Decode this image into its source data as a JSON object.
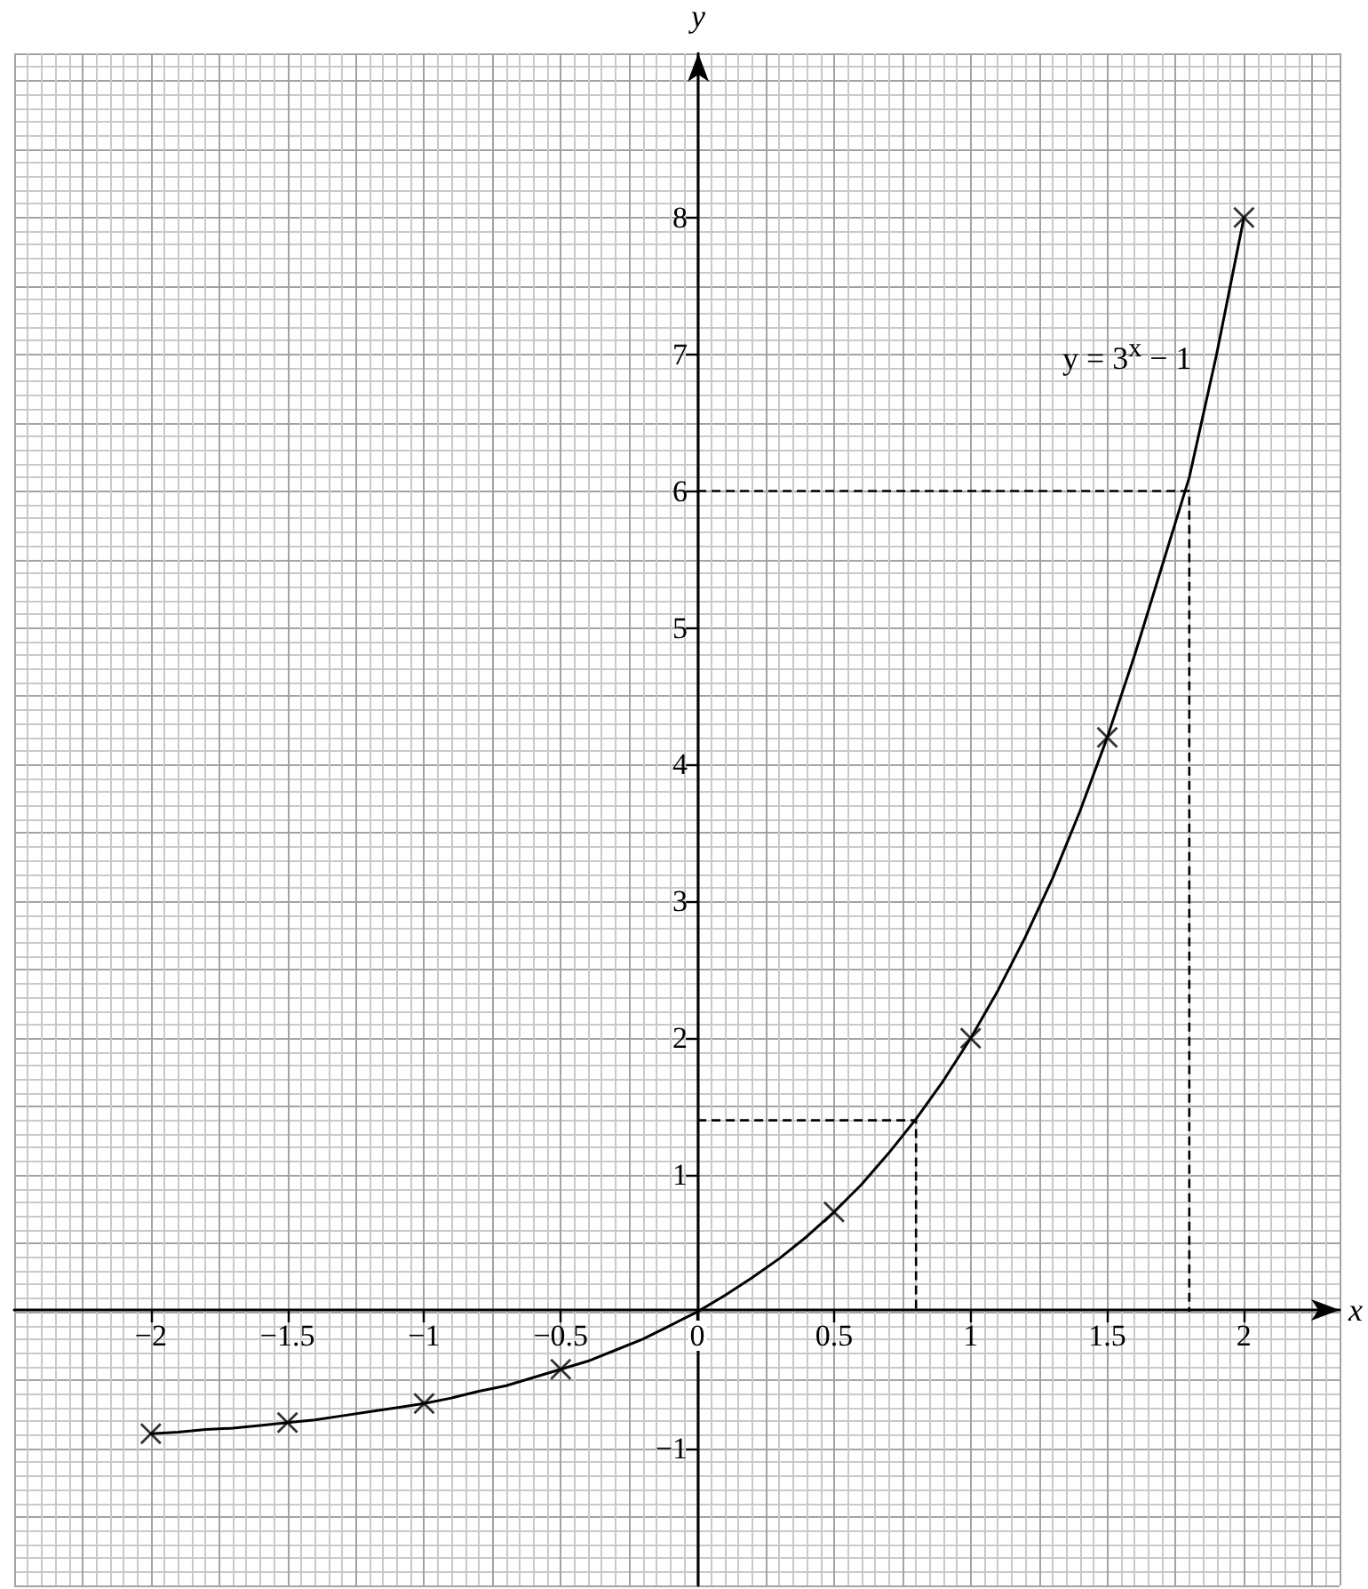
{
  "chart_data": {
    "type": "line",
    "xlabel": "x",
    "ylabel": "y",
    "xlim": [
      -2.5,
      2.35
    ],
    "ylim": [
      -2,
      9.2
    ],
    "xticks": [
      {
        "value": -2,
        "label": "−2"
      },
      {
        "value": -1.5,
        "label": "−1.5"
      },
      {
        "value": -1,
        "label": "−1"
      },
      {
        "value": -0.5,
        "label": "−0.5"
      },
      0,
      0.5,
      1,
      1.5,
      2
    ],
    "yticks": [
      {
        "value": -1,
        "label": "−1"
      },
      1,
      2,
      3,
      4,
      5,
      6,
      7,
      8
    ],
    "grid": true,
    "series": [
      {
        "name": "y = 3$^{x}$ − 1",
        "color": "#000000",
        "marker": "none",
        "line_style": "solid",
        "x": [
          -2,
          -1.9,
          -1.8,
          -1.7,
          -1.6,
          -1.5,
          -1.4,
          -1.3,
          -1.2,
          -1.1,
          -1,
          -0.9,
          -0.8,
          -0.7,
          -0.6,
          -0.5,
          -0.4,
          -0.3,
          -0.2,
          -0.1,
          0,
          0.1,
          0.2,
          0.3,
          0.4,
          0.5,
          0.6,
          0.7,
          0.8,
          0.9,
          1,
          1.1,
          1.2,
          1.3,
          1.4,
          1.5,
          1.6,
          1.7,
          1.8,
          1.9,
          2
        ],
        "values": [
          -0.89,
          -0.88,
          -0.86,
          -0.85,
          -0.83,
          -0.81,
          -0.79,
          -0.76,
          -0.73,
          -0.7,
          -0.67,
          -0.63,
          -0.58,
          -0.54,
          -0.48,
          -0.42,
          -0.36,
          -0.28,
          -0.2,
          -0.1,
          0,
          0.12,
          0.25,
          0.39,
          0.55,
          0.73,
          0.93,
          1.16,
          1.41,
          1.69,
          2,
          2.35,
          2.74,
          3.17,
          3.66,
          4.2,
          4.8,
          5.45,
          6.1,
          7,
          8
        ]
      },
      {
        "type": "scatter",
        "color": "#000000",
        "marker": "cross",
        "x": [
          -2,
          -1.5,
          -1,
          -0.5,
          0.5,
          1,
          1.5,
          2
        ],
        "values": [
          -0.89,
          -0.81,
          -0.67,
          -0.42,
          0.73,
          2,
          4.2,
          8
        ]
      },
      {
        "color": "#000000",
        "marker": "none",
        "line_style": "dashed",
        "x": [
          0,
          1.8,
          1.8
        ],
        "values": [
          6,
          6,
          0
        ]
      },
      {
        "color": "#000000",
        "marker": "none",
        "line_style": "dashed",
        "x": [
          0,
          0.8,
          0.8
        ],
        "values": [
          1.4,
          1.4,
          0
        ]
      }
    ]
  }
}
